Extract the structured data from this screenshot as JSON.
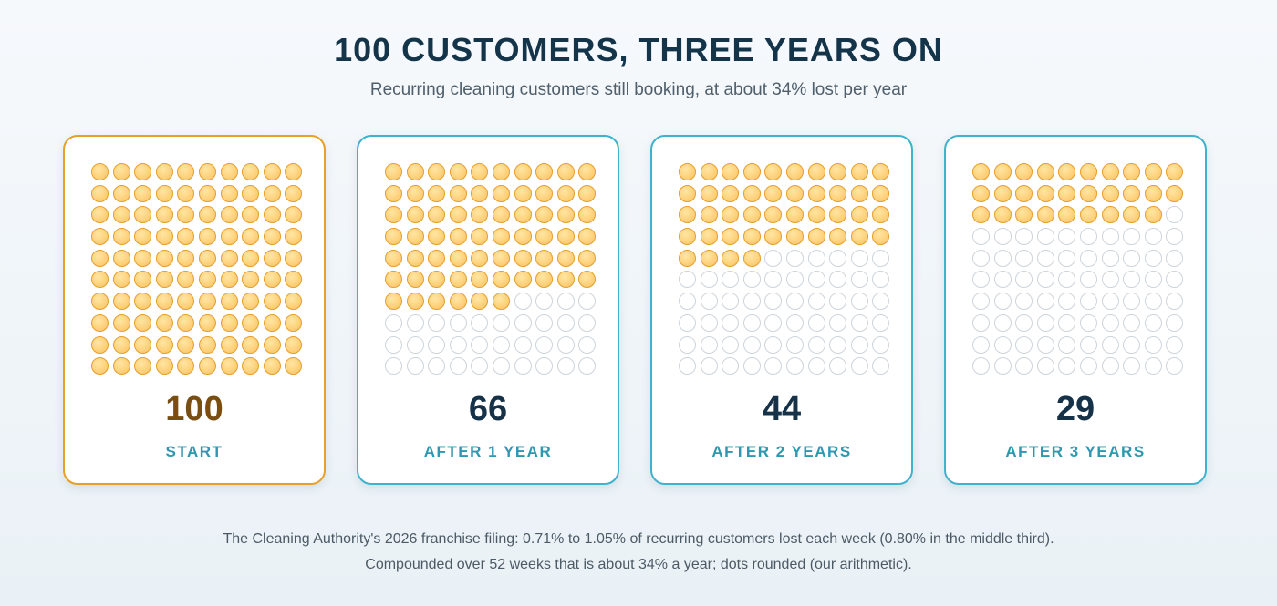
{
  "title": "100 CUSTOMERS, THREE YEARS ON",
  "subtitle": "Recurring cleaning customers still booking, at about 34% lost per year",
  "chart_data": {
    "type": "waffle",
    "title": "100 CUSTOMERS, THREE YEARS ON",
    "subtitle": "Recurring cleaning customers still booking, at about 34% lost per year",
    "total": 100,
    "grid": [
      10,
      10
    ],
    "categories": [
      "START",
      "AFTER 1 YEAR",
      "AFTER 2 YEARS",
      "AFTER 3 YEARS"
    ],
    "values": [
      100,
      66,
      44,
      29
    ],
    "colors": {
      "filled": "#fdd27e",
      "filled_border": "#e69e2c",
      "empty_border": "#cdd4da",
      "start_border": "#e8a025",
      "card_border": "#3fb2cc"
    }
  },
  "panels": [
    {
      "value": "100",
      "label": "START"
    },
    {
      "value": "66",
      "label": "AFTER 1 YEAR"
    },
    {
      "value": "44",
      "label": "AFTER 2 YEARS"
    },
    {
      "value": "29",
      "label": "AFTER 3 YEARS"
    }
  ],
  "notes": {
    "line1": "The Cleaning Authority's 2026 franchise filing: 0.71% to 1.05% of recurring customers lost each week (0.80% in the middle third).",
    "line2": "Compounded over 52 weeks that is about 34% a year; dots rounded (our arithmetic)."
  }
}
